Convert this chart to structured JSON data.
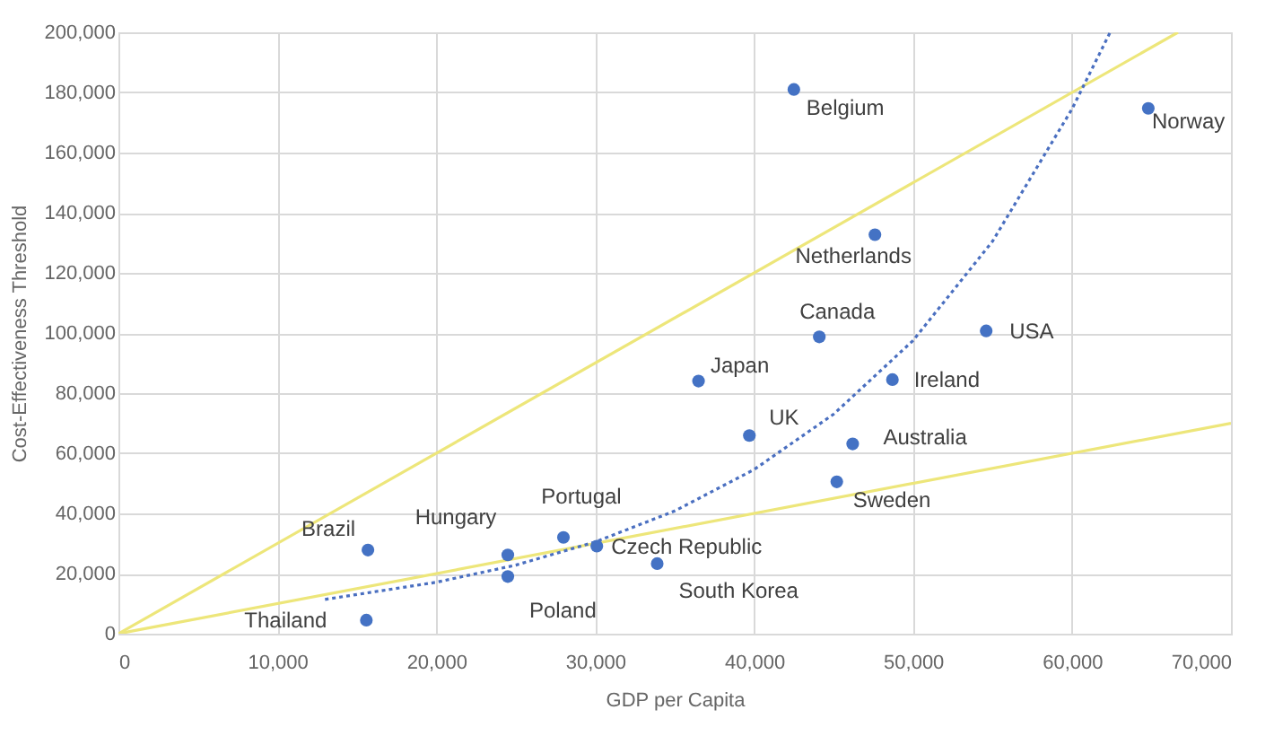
{
  "chart_data": {
    "type": "scatter",
    "xlabel": "GDP per Capita",
    "ylabel": "Cost-Effectiveness Threshold",
    "xlim": [
      0,
      70000
    ],
    "xticks": [
      {
        "value": 0,
        "label": "0"
      },
      {
        "value": 10000,
        "label": "10,000"
      },
      {
        "value": 20000,
        "label": "20,000"
      },
      {
        "value": 30000,
        "label": "30,000"
      },
      {
        "value": 40000,
        "label": "40,000"
      },
      {
        "value": 50000,
        "label": "50,000"
      },
      {
        "value": 60000,
        "label": "60,000"
      },
      {
        "value": 70000,
        "label": "70,000"
      }
    ],
    "ylim": [
      0,
      200000
    ],
    "yticks": [
      {
        "value": 0,
        "label": "0"
      },
      {
        "value": 20000,
        "label": "20,000"
      },
      {
        "value": 40000,
        "label": "40,000"
      },
      {
        "value": 60000,
        "label": "60,000"
      },
      {
        "value": 80000,
        "label": "80,000"
      },
      {
        "value": 100000,
        "label": "100,000"
      },
      {
        "value": 120000,
        "label": "120,000"
      },
      {
        "value": 140000,
        "label": "140,000"
      },
      {
        "value": 160000,
        "label": "160,000"
      },
      {
        "value": 180000,
        "label": "180,000"
      },
      {
        "value": 200000,
        "label": "200,000"
      }
    ],
    "grid": true,
    "series": [
      {
        "type": "line",
        "color": "#ede67a",
        "line_style": "solid",
        "marker": "none",
        "x": [
          0,
          66667
        ],
        "values": [
          0,
          200000
        ]
      },
      {
        "type": "line",
        "color": "#ede67a",
        "line_style": "solid",
        "marker": "none",
        "x": [
          0,
          70000
        ],
        "values": [
          0,
          70000
        ]
      },
      {
        "type": "line",
        "color": "#4a6fc0",
        "line_style": "dotted",
        "marker": "none",
        "x": [
          13000,
          20000,
          25000,
          30000,
          35000,
          40000,
          45000,
          50000,
          55000,
          60000,
          62400
        ],
        "values": [
          11400,
          17100,
          22800,
          30500,
          40800,
          54600,
          73000,
          97500,
          130500,
          174500,
          200000
        ]
      },
      {
        "type": "scatter",
        "color": "#4472c4",
        "marker": "circle",
        "x": [
          15600,
          15700,
          24500,
          24500,
          28000,
          30100,
          33900,
          39700,
          36500,
          44100,
          46200,
          45200,
          48700,
          54600,
          47600,
          42500,
          64800
        ],
        "values": [
          4500,
          27800,
          26200,
          19000,
          32000,
          29100,
          23300,
          65900,
          84000,
          98700,
          63100,
          50500,
          84500,
          100700,
          132700,
          181000,
          174700
        ]
      }
    ],
    "annotations": [
      {
        "text": "Thailand",
        "x": 15600,
        "y": 4500
      },
      {
        "text": "Brazil",
        "x": 15700,
        "y": 27800
      },
      {
        "text": "Hungary",
        "x": 24500,
        "y": 26200
      },
      {
        "text": "Poland",
        "x": 24500,
        "y": 19000
      },
      {
        "text": "Portugal",
        "x": 28000,
        "y": 32000
      },
      {
        "text": "Czech Republic",
        "x": 30100,
        "y": 29100
      },
      {
        "text": "South Korea",
        "x": 33900,
        "y": 23300
      },
      {
        "text": "UK",
        "x": 39700,
        "y": 65900
      },
      {
        "text": "Japan",
        "x": 36500,
        "y": 84000
      },
      {
        "text": "Canada",
        "x": 44100,
        "y": 98700
      },
      {
        "text": "Australia",
        "x": 46200,
        "y": 63100
      },
      {
        "text": "Sweden",
        "x": 45200,
        "y": 50500
      },
      {
        "text": "Ireland",
        "x": 48700,
        "y": 84500
      },
      {
        "text": "USA",
        "x": 54600,
        "y": 100700
      },
      {
        "text": "Netherlands",
        "x": 47600,
        "y": 132700
      },
      {
        "text": "Belgium",
        "x": 42500,
        "y": 181000
      },
      {
        "text": "Norway",
        "x": 64800,
        "y": 174700
      }
    ]
  }
}
